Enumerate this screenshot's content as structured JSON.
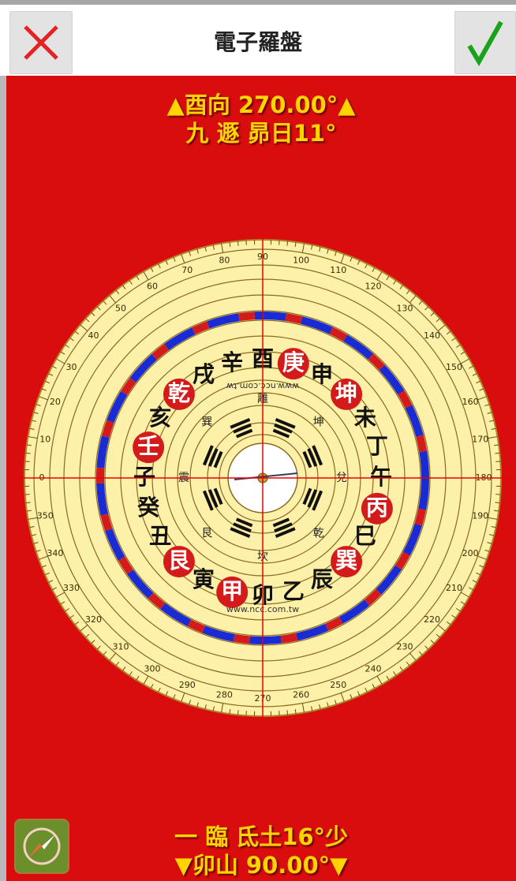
{
  "header": {
    "title": "電子羅盤",
    "close_icon": "close-icon",
    "confirm_icon": "check-icon",
    "close_color": "#e52222",
    "confirm_color": "#1aa31a"
  },
  "readout_top": {
    "direction": "▲酉向  270.00°▲",
    "info": "九  遯  昴日11°"
  },
  "readout_bottom": {
    "info": "一  臨  氐土16°少",
    "direction": "▼卯山  90.00°▼"
  },
  "compass": {
    "heading": 270.0,
    "url_text_top": "www.ncc.com.tw",
    "url_text_bottom": "www.ncc.com.tw",
    "ring_color": "#fdf0a8",
    "accent_red": "#d41b1b",
    "accent_blue": "#1b2bd4",
    "palaces": [
      "子",
      "癸",
      "丑",
      "艮",
      "寅",
      "甲",
      "卯",
      "乙",
      "辰",
      "巽",
      "巳",
      "丙",
      "午",
      "丁",
      "未",
      "坤",
      "申",
      "庚",
      "酉",
      "辛",
      "戌",
      "乾",
      "亥",
      "壬"
    ],
    "red_palaces": [
      "甲",
      "艮",
      "坤",
      "巽",
      "丙",
      "乾",
      "庚",
      "壬"
    ],
    "inner_trigrams": [
      "坎",
      "艮",
      "震",
      "巽",
      "離",
      "坤",
      "兌",
      "乾"
    ],
    "degree_labels": [
      "0",
      "10",
      "20",
      "30",
      "40",
      "50",
      "60",
      "70",
      "80",
      "90",
      "100",
      "110",
      "120",
      "130",
      "140",
      "150",
      "160",
      "170",
      "180",
      "190",
      "200",
      "210",
      "220",
      "230",
      "240",
      "250",
      "260",
      "270",
      "280",
      "290",
      "300",
      "310",
      "320",
      "330",
      "340",
      "350"
    ]
  },
  "floating_button": {
    "icon": "compass-icon"
  }
}
